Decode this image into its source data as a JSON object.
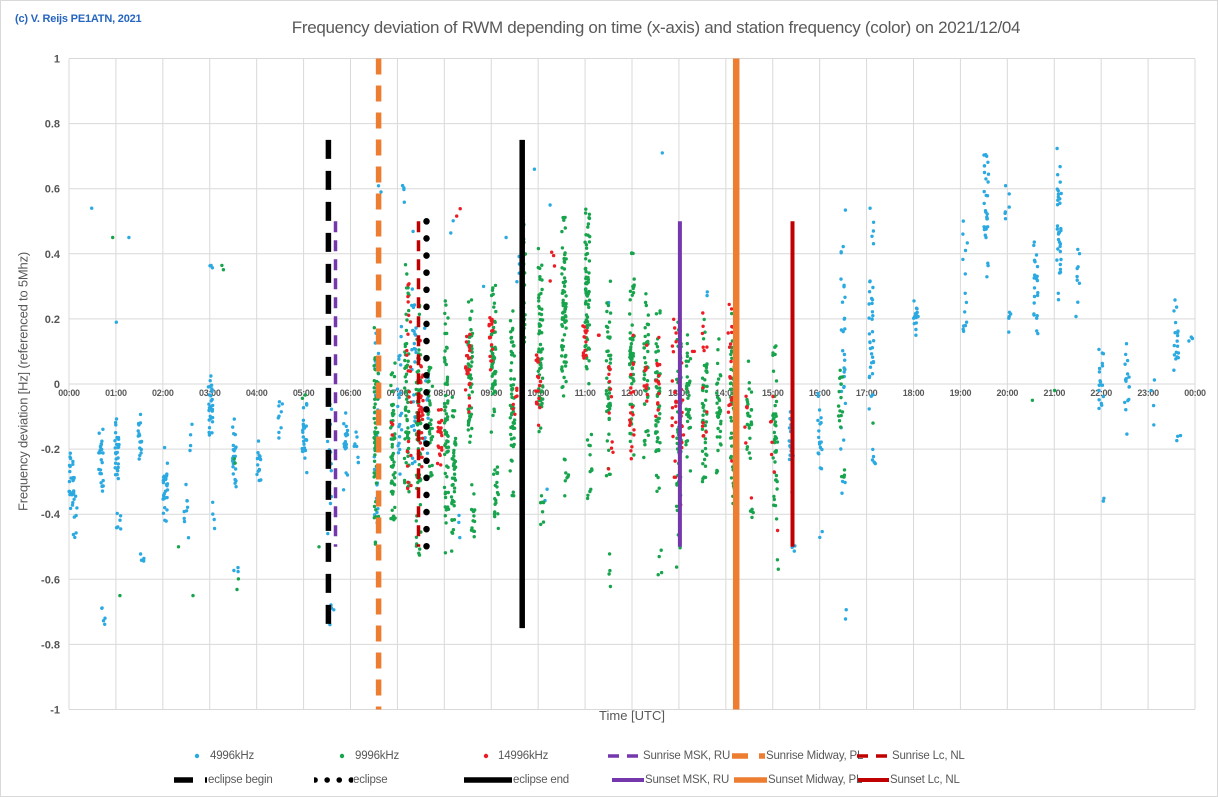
{
  "page": {
    "copyright": "(c) V. Reijs  PE1ATN, 2021"
  },
  "chart_data": {
    "type": "scatter",
    "title": "Frequency deviation of RWM depending on time (x-axis) and station frequency (color) on 2021/12/04",
    "xlabel": "Time [UTC]",
    "ylabel": "Frequency deviation [Hz] (referenced to 5Mhz)",
    "xlim_hours": [
      0,
      24
    ],
    "ylim": [
      -1,
      1
    ],
    "y_tick_labels": [
      "1",
      "0.8",
      "0.6",
      "0.4",
      "0.2",
      "0",
      "-0.2",
      "-0.4",
      "-0.6",
      "-0.8",
      "-1"
    ],
    "x_tick_labels": [
      "00:00",
      "01:00",
      "02:00",
      "03:00",
      "04:00",
      "05:00",
      "06:00",
      "07:00",
      "08:00",
      "09:00",
      "10:00",
      "11:00",
      "12:00",
      "13:00",
      "14:00",
      "15:00",
      "16:00",
      "17:00",
      "18:00",
      "19:00",
      "20:00",
      "21:00",
      "22:00",
      "23:00",
      "00:00"
    ],
    "grid": true,
    "legend_position": "bottom",
    "colors": {
      "grid": "#d9d9d9",
      "axis_text": "#595959",
      "title_text": "#595959",
      "copyright_text": "#2565c0"
    },
    "cluster_format": [
      "t_hours",
      "y_top",
      "y_bottom",
      "count"
    ],
    "series": [
      {
        "name": "4996kHz",
        "color": "#2ba9e1",
        "marker": "dot",
        "clusters": [
          [
            0.05,
            -0.18,
            -0.4,
            22
          ],
          [
            0.12,
            -0.25,
            -0.52,
            12
          ],
          [
            0.45,
            0.54,
            0.54,
            1
          ],
          [
            0.68,
            -0.1,
            -0.38,
            25
          ],
          [
            0.72,
            -0.58,
            -0.8,
            5
          ],
          [
            1.02,
            -0.08,
            -0.32,
            28
          ],
          [
            1.06,
            -0.35,
            -0.5,
            6
          ],
          [
            1.05,
            0.19,
            0.19,
            1
          ],
          [
            1.3,
            0.45,
            0.45,
            1
          ],
          [
            1.52,
            -0.08,
            -0.24,
            16
          ],
          [
            1.56,
            -0.45,
            -0.65,
            4
          ],
          [
            2.05,
            -0.18,
            -0.45,
            28
          ],
          [
            2.5,
            -0.28,
            -0.52,
            9
          ],
          [
            2.58,
            -0.1,
            -0.22,
            4
          ],
          [
            3.02,
            0.12,
            -0.22,
            30
          ],
          [
            3.03,
            0.45,
            0.3,
            3
          ],
          [
            3.1,
            -0.32,
            -0.5,
            4
          ],
          [
            3.52,
            -0.08,
            -0.36,
            22
          ],
          [
            3.56,
            -0.5,
            -0.63,
            3
          ],
          [
            4.05,
            -0.15,
            -0.34,
            14
          ],
          [
            4.5,
            -0.02,
            -0.18,
            9
          ],
          [
            5.02,
            -0.05,
            -0.28,
            24
          ],
          [
            5.55,
            -0.02,
            -0.48,
            20
          ],
          [
            5.6,
            -0.55,
            -0.8,
            4
          ],
          [
            5.9,
            -0.05,
            -0.35,
            20
          ],
          [
            6.12,
            -0.1,
            -0.3,
            8
          ],
          [
            6.55,
            0.33,
            -0.52,
            35
          ],
          [
            6.6,
            0.55,
            0.63,
            2
          ],
          [
            7.05,
            0.28,
            -0.35,
            22
          ],
          [
            7.1,
            0.55,
            0.66,
            4
          ],
          [
            7.35,
            0.5,
            -0.5,
            28
          ],
          [
            7.62,
            0.25,
            -0.3,
            12
          ],
          [
            8.15,
            0.45,
            0.52,
            2
          ],
          [
            8.3,
            -0.35,
            -0.5,
            3
          ],
          [
            8.85,
            0.3,
            0.3,
            1
          ],
          [
            9.35,
            0.45,
            0.45,
            1
          ],
          [
            9.55,
            0.28,
            0.45,
            4
          ],
          [
            9.9,
            0.66,
            0.66,
            1
          ],
          [
            10.15,
            -0.27,
            -0.36,
            2
          ],
          [
            10.3,
            0.55,
            0.55,
            1
          ],
          [
            11.5,
            0.25,
            0.25,
            1
          ],
          [
            12.66,
            0.71,
            0.71,
            1
          ],
          [
            13.6,
            0.24,
            0.3,
            2
          ],
          [
            15.4,
            0.02,
            -0.35,
            22
          ],
          [
            15.45,
            -0.45,
            -0.56,
            3
          ],
          [
            16.0,
            0.03,
            -0.3,
            18
          ],
          [
            16.05,
            -0.4,
            -0.5,
            2
          ],
          [
            16.5,
            0.55,
            -0.55,
            32
          ],
          [
            16.55,
            -0.62,
            -0.76,
            2
          ],
          [
            17.1,
            0.57,
            -0.12,
            36
          ],
          [
            17.15,
            -0.18,
            -0.32,
            5
          ],
          [
            18.05,
            0.13,
            0.28,
            16
          ],
          [
            19.1,
            0.1,
            0.62,
            14
          ],
          [
            19.55,
            0.28,
            0.76,
            30
          ],
          [
            20.0,
            0.45,
            0.66,
            6
          ],
          [
            20.05,
            0.08,
            0.25,
            5
          ],
          [
            20.6,
            0.12,
            0.5,
            22
          ],
          [
            21.1,
            0.18,
            0.74,
            34
          ],
          [
            21.5,
            0.2,
            0.44,
            9
          ],
          [
            22.0,
            -0.12,
            0.2,
            18
          ],
          [
            22.05,
            -0.3,
            -0.42,
            2
          ],
          [
            22.55,
            -0.22,
            0.15,
            16
          ],
          [
            23.1,
            -0.15,
            0.05,
            4
          ],
          [
            23.6,
            -0.02,
            0.27,
            18
          ],
          [
            23.65,
            -0.2,
            -0.12,
            3
          ],
          [
            23.9,
            0.1,
            0.2,
            3
          ]
        ]
      },
      {
        "name": "9996kHz",
        "color": "#17a44c",
        "marker": "dot",
        "clusters": [
          [
            0.95,
            0.45,
            0.45,
            1
          ],
          [
            1.1,
            -0.65,
            -0.65,
            1
          ],
          [
            2.3,
            -0.5,
            -0.5,
            1
          ],
          [
            2.6,
            -0.65,
            -0.65,
            1
          ],
          [
            3.3,
            0.3,
            0.4,
            2
          ],
          [
            3.55,
            -0.22,
            -0.3,
            2
          ],
          [
            3.6,
            -0.55,
            -0.68,
            2
          ],
          [
            5.0,
            0.05,
            -0.1,
            2
          ],
          [
            5.3,
            -0.5,
            -0.5,
            1
          ],
          [
            6.55,
            0.25,
            -0.55,
            70
          ],
          [
            6.9,
            0.1,
            -0.48,
            55
          ],
          [
            7.2,
            0.45,
            -0.5,
            60
          ],
          [
            7.45,
            0.3,
            -0.58,
            70
          ],
          [
            7.7,
            0.08,
            -0.35,
            35
          ],
          [
            8.05,
            0.3,
            -0.58,
            65
          ],
          [
            8.2,
            0.0,
            -0.55,
            45
          ],
          [
            8.55,
            0.3,
            -0.22,
            55
          ],
          [
            8.6,
            -0.28,
            -0.5,
            15
          ],
          [
            9.05,
            0.35,
            -0.18,
            60
          ],
          [
            9.1,
            -0.22,
            -0.48,
            20
          ],
          [
            9.45,
            0.3,
            -0.45,
            55
          ],
          [
            9.68,
            0.55,
            -0.05,
            45
          ],
          [
            10.05,
            0.45,
            -0.22,
            60
          ],
          [
            10.1,
            -0.28,
            -0.45,
            8
          ],
          [
            10.55,
            0.55,
            -0.12,
            70
          ],
          [
            10.6,
            -0.18,
            -0.38,
            8
          ],
          [
            11.05,
            0.62,
            -0.08,
            70
          ],
          [
            11.1,
            -0.12,
            -0.38,
            12
          ],
          [
            11.5,
            0.35,
            -0.38,
            50
          ],
          [
            11.55,
            -0.42,
            -0.66,
            4
          ],
          [
            12.0,
            0.45,
            -0.28,
            60
          ],
          [
            12.3,
            0.35,
            -0.32,
            45
          ],
          [
            12.55,
            0.3,
            -0.38,
            50
          ],
          [
            12.6,
            -0.42,
            -0.62,
            4
          ],
          [
            13.0,
            0.3,
            -0.62,
            55
          ],
          [
            13.2,
            0.2,
            -0.32,
            35
          ],
          [
            13.55,
            0.25,
            -0.42,
            45
          ],
          [
            13.85,
            0.15,
            -0.32,
            35
          ],
          [
            14.15,
            0.3,
            -0.38,
            55
          ],
          [
            14.5,
            0.1,
            -0.28,
            25
          ],
          [
            14.55,
            -0.32,
            -0.46,
            6
          ],
          [
            15.05,
            0.15,
            -0.48,
            45
          ],
          [
            15.15,
            -0.52,
            -0.62,
            2
          ],
          [
            16.45,
            0.1,
            -0.18,
            14
          ],
          [
            16.5,
            -0.22,
            -0.32,
            4
          ],
          [
            17.1,
            -0.12,
            -0.12,
            1
          ],
          [
            20.5,
            -0.05,
            -0.05,
            1
          ],
          [
            21.05,
            -0.02,
            -0.02,
            1
          ]
        ]
      },
      {
        "name": "14996kHz",
        "color": "#ec1c24",
        "marker": "dot",
        "clusters": [
          [
            6.9,
            -0.05,
            -0.18,
            3
          ],
          [
            7.25,
            0.5,
            -0.45,
            22
          ],
          [
            7.5,
            0.15,
            -0.32,
            28
          ],
          [
            7.9,
            -0.02,
            -0.3,
            22
          ],
          [
            8.3,
            0.5,
            0.55,
            2
          ],
          [
            8.5,
            0.2,
            -0.1,
            22
          ],
          [
            9.0,
            0.25,
            0.02,
            18
          ],
          [
            9.5,
            0.05,
            -0.12,
            7
          ],
          [
            10.0,
            0.2,
            -0.15,
            18
          ],
          [
            10.3,
            0.45,
            0.3,
            4
          ],
          [
            11.0,
            0.22,
            0.05,
            14
          ],
          [
            11.3,
            0.15,
            0.15,
            2
          ],
          [
            11.55,
            0.2,
            -0.3,
            12
          ],
          [
            12.0,
            0.2,
            -0.28,
            18
          ],
          [
            12.3,
            0.15,
            -0.1,
            9
          ],
          [
            12.55,
            0.2,
            -0.15,
            14
          ],
          [
            12.9,
            0.3,
            -0.35,
            22
          ],
          [
            13.05,
            0.2,
            -0.4,
            18
          ],
          [
            13.3,
            0.1,
            0.1,
            2
          ],
          [
            13.55,
            0.3,
            -0.2,
            13
          ],
          [
            14.1,
            0.3,
            -0.35,
            18
          ],
          [
            14.45,
            0.0,
            -0.2,
            5
          ],
          [
            14.55,
            -0.35,
            -0.35,
            1
          ],
          [
            15.0,
            0.0,
            -0.3,
            6
          ],
          [
            15.1,
            -0.45,
            -0.45,
            1
          ]
        ]
      }
    ],
    "vlines": [
      {
        "label": "eclipse begin",
        "time_utc": "05:32",
        "t_hours": 5.53,
        "y_from": 0.75,
        "y_to": -0.75,
        "color": "#000000",
        "style": "dashed",
        "width": 5.5,
        "dash": "19 12"
      },
      {
        "label": "Sunrise MSK, RU",
        "time_utc": "05:41",
        "t_hours": 5.68,
        "y_from": 0.5,
        "y_to": -0.5,
        "color": "#7438ac",
        "style": "dashed",
        "width": 3.5,
        "dash": "11 8"
      },
      {
        "label": "Sunrise Midway, PL",
        "time_utc": "06:36",
        "t_hours": 6.6,
        "y_from": 1.0,
        "y_to": -1.0,
        "color": "#ed7d31",
        "style": "dashed",
        "width": 5.5,
        "dash": "16 11"
      },
      {
        "label": "Sunrise Lc, NL",
        "time_utc": "07:27",
        "t_hours": 7.45,
        "y_from": 0.5,
        "y_to": -0.5,
        "color": "#c00000",
        "style": "dashed",
        "width": 3.5,
        "dash": "11 8"
      },
      {
        "label": "eclipse",
        "time_utc": "07:37",
        "t_hours": 7.62,
        "y_from": 0.5,
        "y_to": -0.5,
        "color": "#000000",
        "style": "dotted",
        "width": 6.5,
        "dash": "0.1 17",
        "cap": "round",
        "legend_dash": "0.1 12"
      },
      {
        "label": "eclipse end",
        "time_utc": "09:40",
        "t_hours": 9.66,
        "y_from": 0.75,
        "y_to": -0.75,
        "color": "#000000",
        "style": "solid",
        "width": 5.5
      },
      {
        "label": "Sunset MSK, RU",
        "time_utc": "13:01",
        "t_hours": 13.02,
        "y_from": 0.5,
        "y_to": -0.5,
        "color": "#7438ac",
        "style": "solid",
        "width": 4
      },
      {
        "label": "Sunset Midway, PL",
        "time_utc": "14:13",
        "t_hours": 14.22,
        "y_from": 1.0,
        "y_to": -1.0,
        "color": "#ed7d31",
        "style": "solid",
        "width": 6.5
      },
      {
        "label": "Sunset Lc, NL",
        "time_utc": "15:25",
        "t_hours": 15.42,
        "y_from": 0.5,
        "y_to": -0.5,
        "color": "#c00000",
        "style": "solid",
        "width": 4
      }
    ]
  }
}
